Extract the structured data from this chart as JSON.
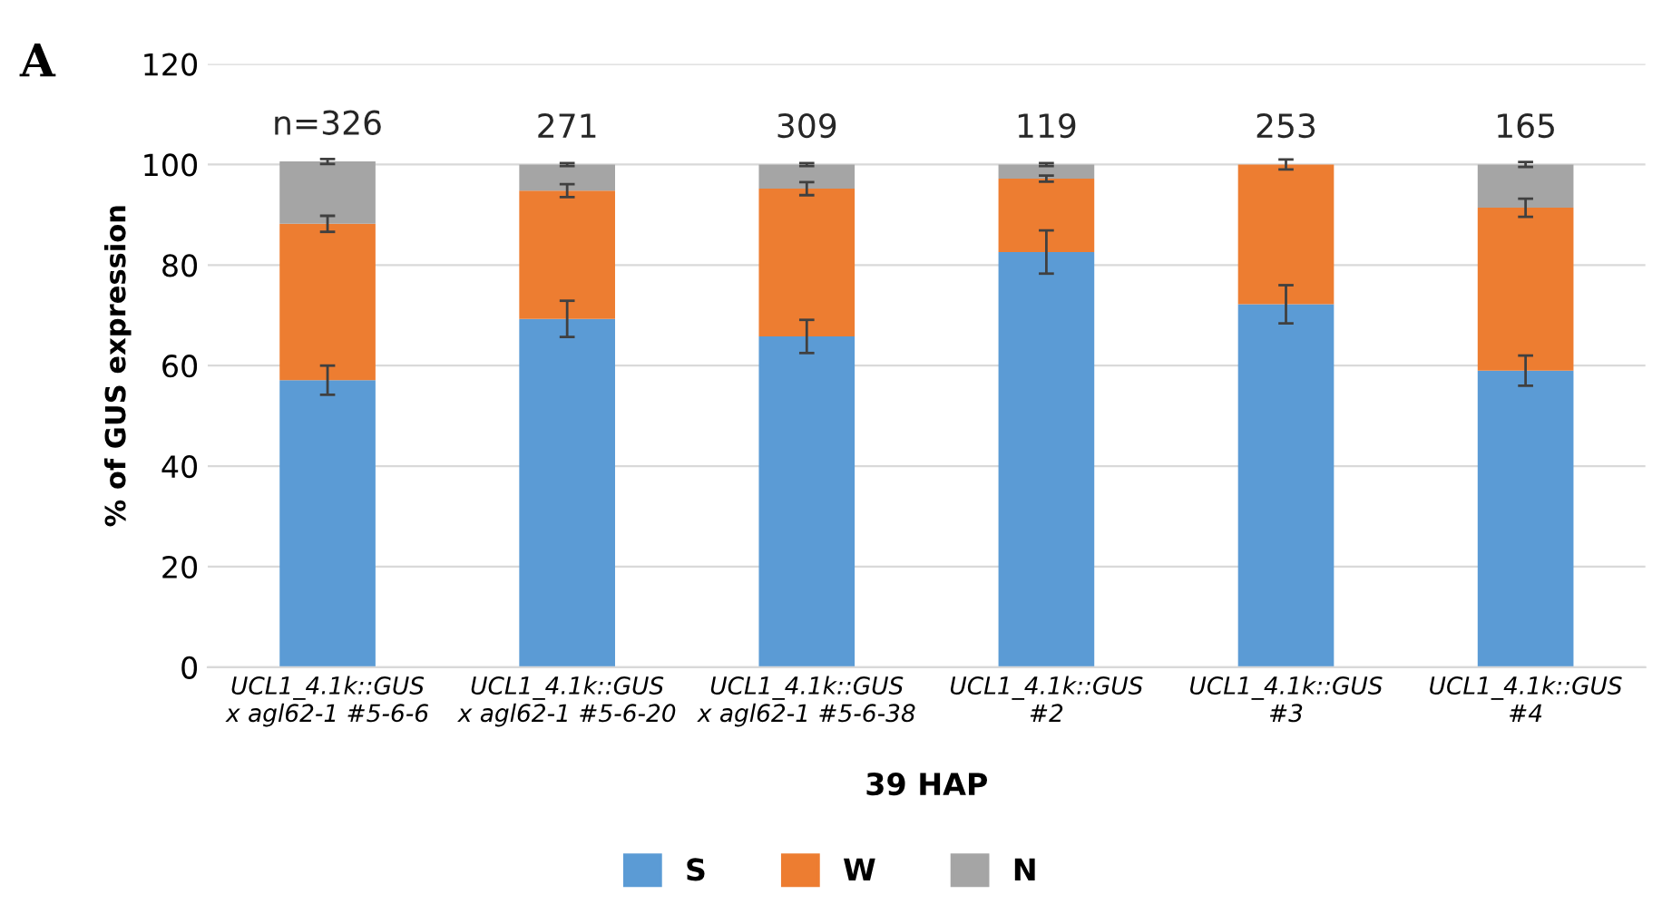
{
  "chart_data": {
    "type": "bar",
    "stacked": true,
    "xlabel": "39 HAP",
    "ylabel": "% of GUS expression",
    "categories": [
      "UCL1_4.1k::GUS\nx agl62-1 #5-6-6",
      "UCL1_4.1k::GUS\nx agl62-1 #5-6-20",
      "UCL1_4.1k::GUS\nx agl62-1 #5-6-38",
      "UCL1_4.1k::GUS\n#2",
      "UCL1_4.1k::GUS\n#3",
      "UCL1_4.1k::GUS\n#4"
    ],
    "series": [
      {
        "name": "S",
        "color": "#5b9bd5",
        "values": [
          57.1,
          69.3,
          65.8,
          82.6,
          72.2,
          59.0
        ],
        "errors": [
          2.9,
          3.6,
          3.3,
          4.3,
          3.8,
          3.0
        ]
      },
      {
        "name": "W",
        "color": "#ed7d31",
        "values": [
          31.1,
          25.5,
          29.4,
          14.6,
          27.8,
          32.4
        ],
        "errors": [
          1.6,
          1.3,
          1.3,
          0.6,
          null,
          1.8
        ]
      },
      {
        "name": "N",
        "color": "#a5a5a5",
        "values": [
          12.4,
          5.2,
          4.8,
          2.8,
          0,
          8.6
        ],
        "errors": [
          0.5,
          0.3,
          0.3,
          0.3,
          1.0,
          0.5
        ]
      }
    ],
    "ylim": [
      0,
      120
    ],
    "yticks": [
      0,
      20,
      40,
      60,
      80,
      100,
      120
    ],
    "grid": "y",
    "legend": "bottom",
    "annotations": [
      "n=326",
      "271",
      "309",
      "119",
      "253",
      "165",
      "A"
    ]
  }
}
